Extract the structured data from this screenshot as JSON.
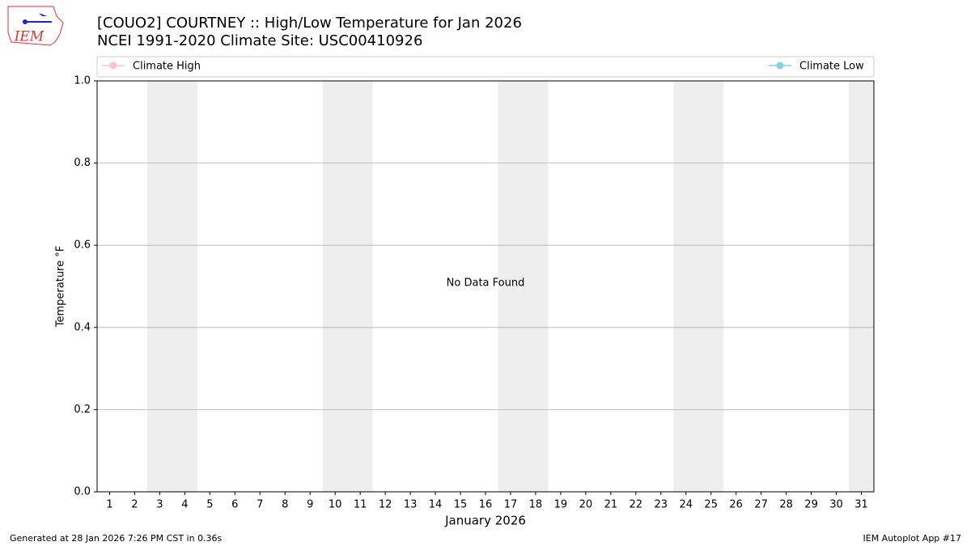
{
  "logo_text": "IEM",
  "footer": {
    "left": "Generated at 28 Jan 2026 7:26 PM CST in 0.36s",
    "right": "IEM Autoplot App #17"
  },
  "chart_data": {
    "type": "line",
    "title": "[COUO2] COURTNEY :: High/Low Temperature for Jan 2026",
    "subtitle": "NCEI 1991-2020 Climate Site: USC00410926",
    "x_label": "January 2026",
    "y_label": "Temperature °F",
    "annotation": "No Data Found",
    "series": [
      {
        "name": "Climate High",
        "color": "#ffc0cb",
        "values": []
      },
      {
        "name": "Climate Low",
        "color": "#87ceeb",
        "values": []
      }
    ],
    "xlim": [
      0.5,
      31.5
    ],
    "xticks": [
      1,
      2,
      3,
      4,
      5,
      6,
      7,
      8,
      9,
      10,
      11,
      12,
      13,
      14,
      15,
      16,
      17,
      18,
      19,
      20,
      21,
      22,
      23,
      24,
      25,
      26,
      27,
      28,
      29,
      30,
      31
    ],
    "ylim": [
      0,
      1
    ],
    "yticks": [
      {
        "value": 0,
        "label": "0.0"
      },
      {
        "value": 0.2,
        "label": "0.2"
      },
      {
        "value": 0.4,
        "label": "0.4"
      },
      {
        "value": 0.6,
        "label": "0.6"
      },
      {
        "value": 0.8,
        "label": "0.8"
      },
      {
        "value": 1,
        "label": "1.0"
      }
    ],
    "shaded_spans": [
      [
        2.5,
        4.5
      ],
      [
        9.5,
        11.5
      ],
      [
        16.5,
        18.5
      ],
      [
        23.5,
        25.5
      ],
      [
        30.5,
        31.5
      ]
    ],
    "shade_color": "#eeeeee",
    "grid": true
  }
}
